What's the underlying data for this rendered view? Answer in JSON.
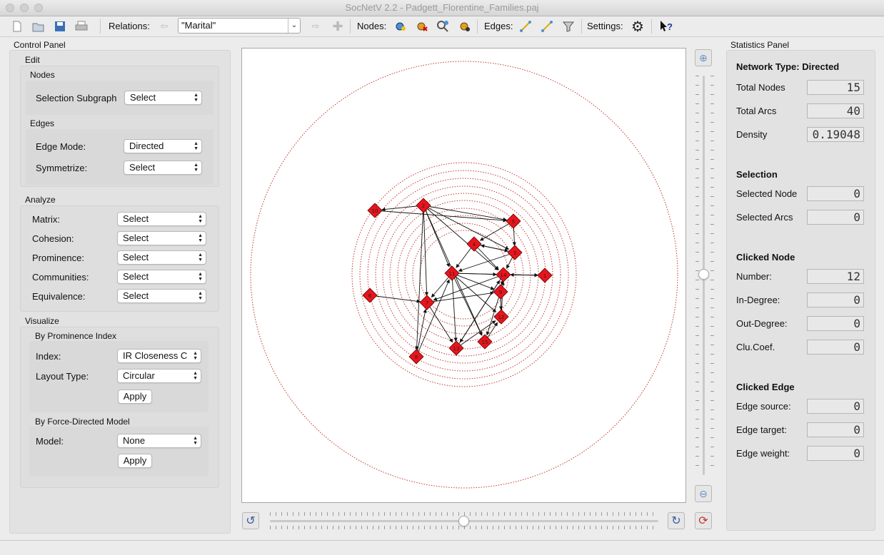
{
  "window": {
    "title": "SocNetV 2.2 - Padgett_Florentine_Families.paj"
  },
  "toolbar": {
    "relations_label": "Relations:",
    "relation_value": "\"Marital\"",
    "nodes_label": "Nodes:",
    "edges_label": "Edges:",
    "settings_label": "Settings:"
  },
  "control_panel": {
    "title": "Control Panel",
    "edit": {
      "title": "Edit",
      "nodes_title": "Nodes",
      "selection_subgraph_label": "Selection Subgraph",
      "selection_subgraph_value": "Select",
      "edges_title": "Edges",
      "edge_mode_label": "Edge Mode:",
      "edge_mode_value": "Directed",
      "symmetrize_label": "Symmetrize:",
      "symmetrize_value": "Select"
    },
    "analyze": {
      "title": "Analyze",
      "rows": [
        {
          "label": "Matrix:",
          "value": "Select"
        },
        {
          "label": "Cohesion:",
          "value": "Select"
        },
        {
          "label": "Prominence:",
          "value": "Select"
        },
        {
          "label": "Communities:",
          "value": "Select"
        },
        {
          "label": "Equivalence:",
          "value": "Select"
        }
      ]
    },
    "visualize": {
      "title": "Visualize",
      "prominence_title": "By Prominence Index",
      "index_label": "Index:",
      "index_value": "IR Closeness C",
      "layout_label": "Layout Type:",
      "layout_value": "Circular",
      "apply1": "Apply",
      "force_title": "By Force-Directed Model",
      "model_label": "Model:",
      "model_value": "None",
      "apply2": "Apply"
    }
  },
  "graph": {
    "nodes": [
      {
        "id": "10"
      },
      {
        "id": "2"
      },
      {
        "id": "5"
      },
      {
        "id": "4"
      },
      {
        "id": "3"
      },
      {
        "id": "11"
      },
      {
        "id": "14"
      },
      {
        "id": "1"
      },
      {
        "id": "6"
      },
      {
        "id": "7"
      },
      {
        "id": "9"
      },
      {
        "id": "8"
      },
      {
        "id": "13"
      },
      {
        "id": "15"
      },
      {
        "id": "12"
      }
    ]
  },
  "stats": {
    "title": "Statistics Panel",
    "network_type": "Network Type: Directed",
    "total_nodes_label": "Total Nodes",
    "total_nodes": "15",
    "total_arcs_label": "Total Arcs",
    "total_arcs": "40",
    "density_label": "Density",
    "density": "0.19048",
    "selection_title": "Selection",
    "selected_node_label": "Selected Node",
    "selected_node": "0",
    "selected_arcs_label": "Selected Arcs",
    "selected_arcs": "0",
    "clicked_node_title": "Clicked Node",
    "number_label": "Number:",
    "number": "12",
    "in_degree_label": "In-Degree:",
    "in_degree": "0",
    "out_degree_label": "Out-Degree:",
    "out_degree": "0",
    "clucoef_label": "Clu.Coef.",
    "clucoef": "0",
    "clicked_edge_title": "Clicked Edge",
    "edge_source_label": "Edge source:",
    "edge_source": "0",
    "edge_target_label": "Edge target:",
    "edge_target": "0",
    "edge_weight_label": "Edge weight:",
    "edge_weight": "0"
  },
  "colors": {
    "node": "#e8141c",
    "ring": "#c0392b"
  }
}
